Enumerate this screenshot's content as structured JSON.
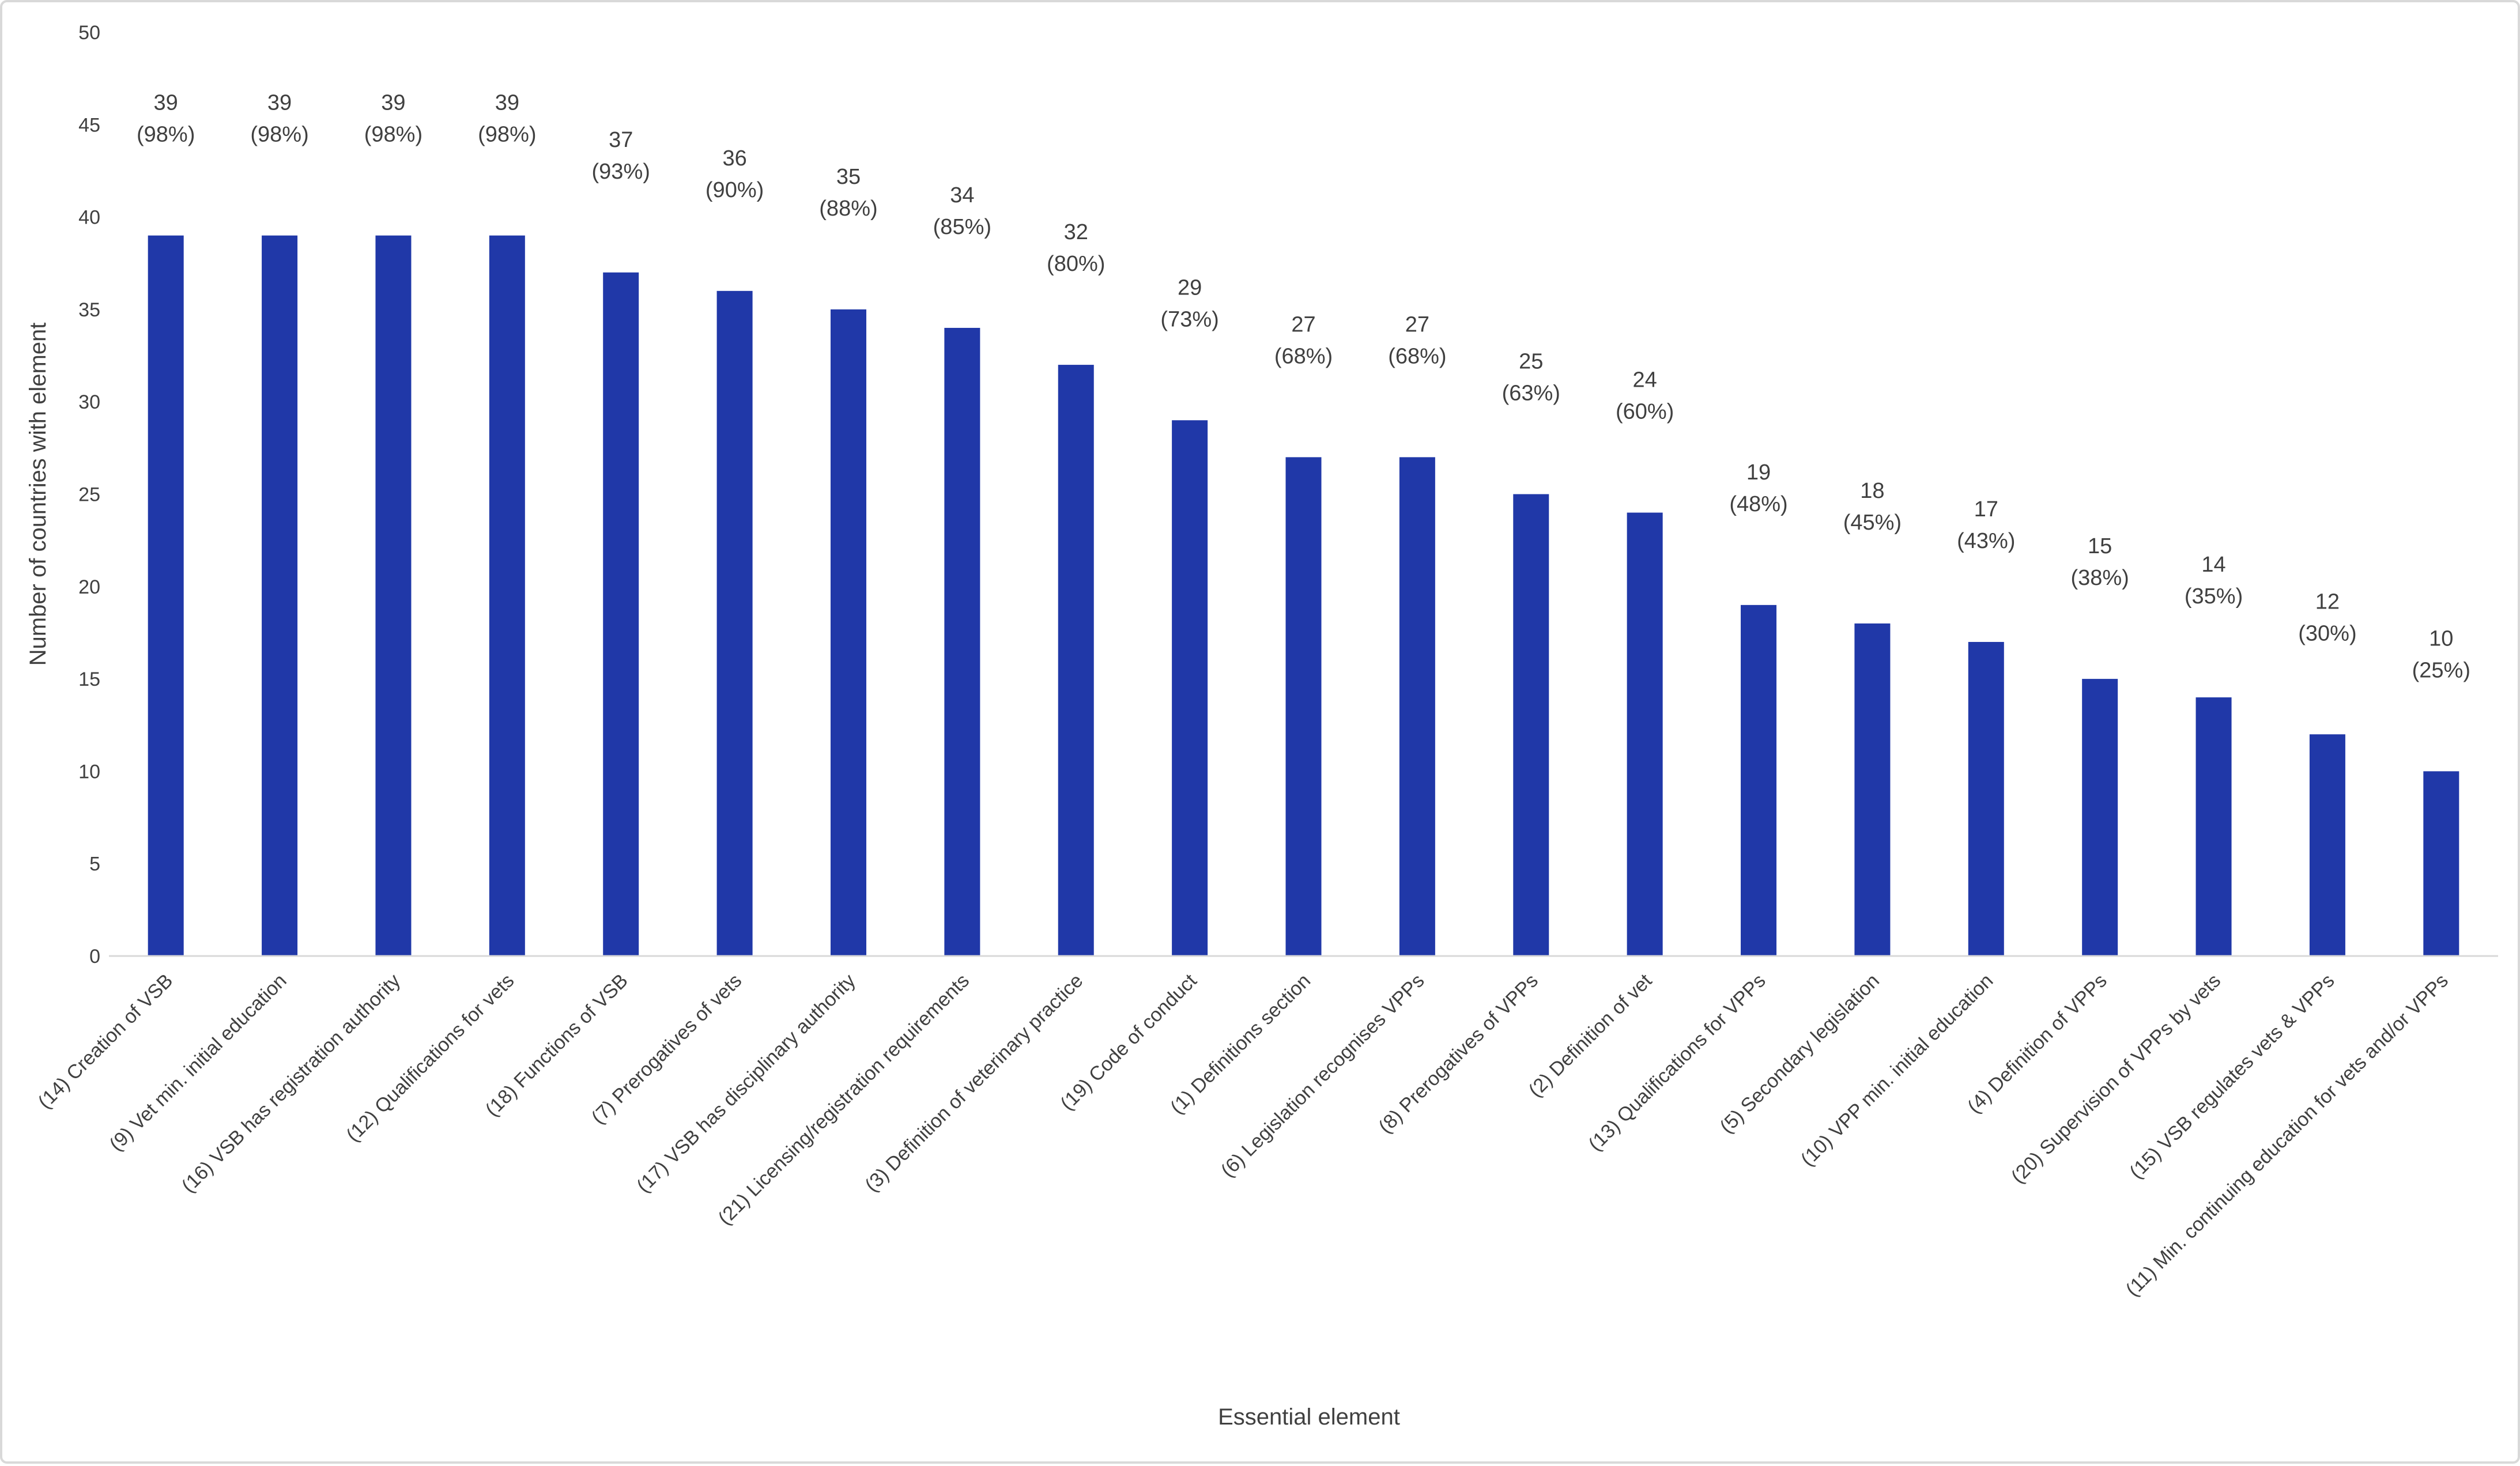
{
  "chart_data": {
    "type": "bar",
    "xlabel": "Essential element",
    "ylabel": "Number of countries with element",
    "ylim": [
      0,
      50
    ],
    "ytick_step": 5,
    "grid": false,
    "legend": "none",
    "bar_color": "#2038A8",
    "categories": [
      "(14) Creation of VSB",
      "(9) Vet min. initial education",
      "(16) VSB has registration authority",
      "(12) Qualifications for vets",
      "(18) Functions of VSB",
      "(7) Prerogatives of vets",
      "(17) VSB has disciplinary authority",
      "(21) Licensing/registration requirements",
      "(3) Definition of veterinary practice",
      "(19) Code of conduct",
      "(1) Definitions section",
      "(6) Legislation recognises VPPs",
      "(8) Prerogatives of VPPs",
      "(2) Definition of vet",
      "(13) Qualifications for VPPs",
      "(5) Secondary legislation",
      "(10) VPP min. initial education",
      "(4) Definition of VPPs",
      "(20) Supervision of VPPs by vets",
      "(15) VSB regulates vets & VPPs",
      "(11) Min. continuing education for vets and/or VPPs"
    ],
    "values": [
      39,
      39,
      39,
      39,
      37,
      36,
      35,
      34,
      32,
      29,
      27,
      27,
      25,
      24,
      19,
      18,
      17,
      15,
      14,
      12,
      10
    ],
    "percent_labels": [
      "(98%)",
      "(98%)",
      "(98%)",
      "(98%)",
      "(93%)",
      "(90%)",
      "(88%)",
      "(85%)",
      "(80%)",
      "(73%)",
      "(68%)",
      "(68%)",
      "(63%)",
      "(60%)",
      "(48%)",
      "(45%)",
      "(43%)",
      "(38%)",
      "(35%)",
      "(30%)",
      "(25%)"
    ]
  }
}
